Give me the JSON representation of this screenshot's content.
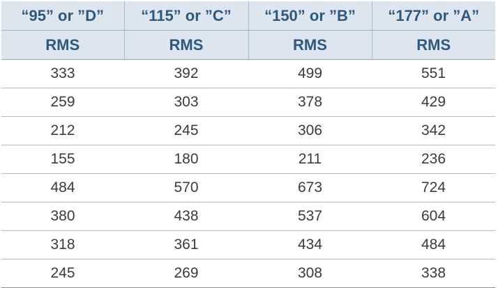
{
  "table": {
    "columns": [
      {
        "name": "“95” or ”D”",
        "unit": "RMS"
      },
      {
        "name": "“115” or ”C”",
        "unit": "RMS"
      },
      {
        "name": "“150” or ”B”",
        "unit": "RMS"
      },
      {
        "name": "“177” or ”A”",
        "unit": "RMS"
      }
    ],
    "rows": [
      [
        "333",
        "392",
        "499",
        "551"
      ],
      [
        "259",
        "303",
        "378",
        "429"
      ],
      [
        "212",
        "245",
        "306",
        "342"
      ],
      [
        "155",
        "180",
        "211",
        "236"
      ],
      [
        "484",
        "570",
        "673",
        "724"
      ],
      [
        "380",
        "438",
        "537",
        "604"
      ],
      [
        "318",
        "361",
        "434",
        "484"
      ],
      [
        "245",
        "269",
        "308",
        "338"
      ]
    ]
  },
  "colors": {
    "header_background": "#dde6ef",
    "header_text": "#2f587d",
    "body_text": "#3a3a3a",
    "row_divider": "#b8b8b8"
  }
}
